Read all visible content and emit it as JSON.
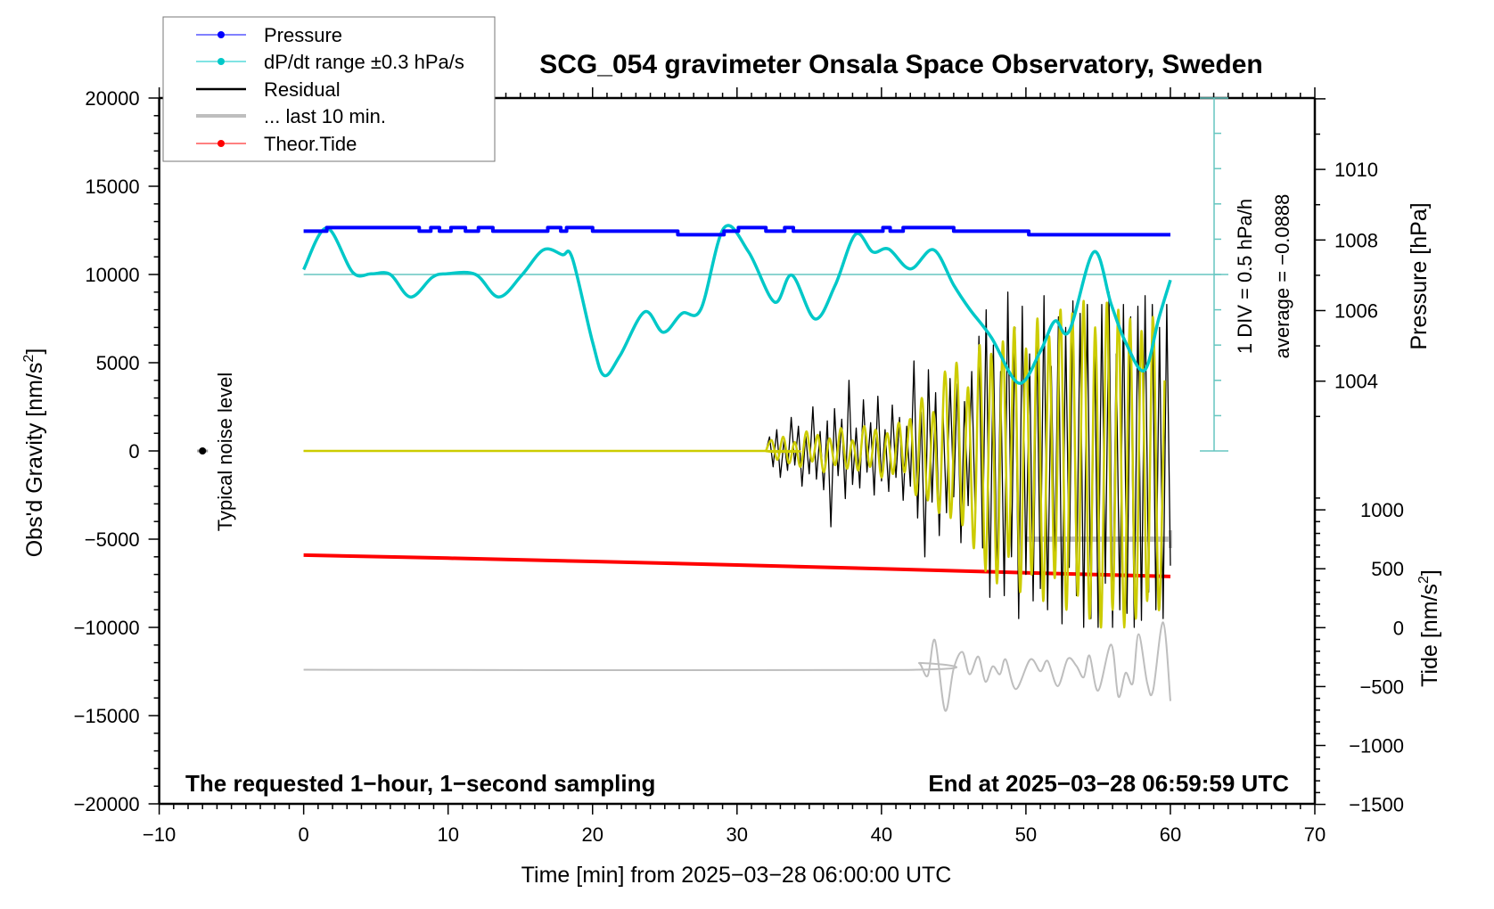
{
  "chart_data": {
    "type": "line",
    "title": "SCG_054 gravimeter Onsala Space Observatory, Sweden",
    "xlabel": "Time [min] from 2025−03−28 06:00:00 UTC",
    "ylabel_left_main": "Obs'd Gravity [nm/s",
    "ylabel_left_sup": "2",
    "ylabel_left_end": "]",
    "ylabel_right_pressure": "Pressure [hPa]",
    "ylabel_right_tide_main": "Tide [nm/s",
    "ylabel_right_tide_sup": "2",
    "ylabel_right_tide_end": "]",
    "xlim": [
      -10,
      70
    ],
    "ylim": [
      -20000,
      20000
    ],
    "pressure_lim_ticks": [
      1004,
      1006,
      1008,
      1010
    ],
    "tide_ticks": [
      -1500,
      -1000,
      -500,
      0,
      500,
      1000
    ],
    "x_ticks": [
      -10,
      0,
      10,
      20,
      30,
      40,
      50,
      60,
      70
    ],
    "x_tick_labels": [
      "−10",
      "0",
      "10",
      "20",
      "30",
      "40",
      "50",
      "60",
      "70"
    ],
    "y_ticks": [
      -20000,
      -15000,
      -10000,
      -5000,
      0,
      5000,
      10000,
      15000,
      20000
    ],
    "y_tick_labels": [
      "−20000",
      "−15000",
      "−10000",
      "−5000",
      "0",
      "5000",
      "10000",
      "15000",
      "20000"
    ],
    "pressure_tick_labels": [
      "1004",
      "1006",
      "1008",
      "1010"
    ],
    "tide_tick_labels": [
      "−1500",
      "−1000",
      "−500",
      "0",
      "500",
      "1000"
    ],
    "legend": {
      "placement": "top-left",
      "entries": [
        {
          "label": "Pressure",
          "color": "#0000ff",
          "style": "line-dot"
        },
        {
          "label": "dP/dt range ±0.3 hPa/s",
          "color": "#00c8c8",
          "style": "line-dot"
        },
        {
          "label": "Residual",
          "color": "#000000",
          "style": "line"
        },
        {
          "label": "... last 10 min.",
          "color": "#bebebe",
          "style": "line"
        },
        {
          "label": "Theor.Tide",
          "color": "#ff0000",
          "style": "line-dot"
        }
      ]
    },
    "annotations": {
      "left_note": "The requested 1−hour, 1−second sampling",
      "right_note": "End at 2025−03−28 06:59:59 UTC",
      "noise_label": "Typical noise level",
      "div_label": "1 DIV = 0.5 hPa/h",
      "average_label": "average = −0.0888"
    },
    "pressure_hPa_steps": [
      [
        0,
        1008.25
      ],
      [
        1.6,
        1008.35
      ],
      [
        8.0,
        1008.25
      ],
      [
        8.8,
        1008.35
      ],
      [
        9.4,
        1008.25
      ],
      [
        10.2,
        1008.35
      ],
      [
        11.2,
        1008.25
      ],
      [
        12.1,
        1008.35
      ],
      [
        13.1,
        1008.25
      ],
      [
        16.9,
        1008.35
      ],
      [
        17.8,
        1008.25
      ],
      [
        18.2,
        1008.35
      ],
      [
        20.0,
        1008.25
      ],
      [
        25.9,
        1008.15
      ],
      [
        29.1,
        1008.25
      ],
      [
        30.1,
        1008.35
      ],
      [
        32.0,
        1008.25
      ],
      [
        33.3,
        1008.35
      ],
      [
        33.9,
        1008.25
      ],
      [
        40.1,
        1008.35
      ],
      [
        40.6,
        1008.25
      ],
      [
        41.5,
        1008.35
      ],
      [
        45.0,
        1008.25
      ],
      [
        50.2,
        1008.15
      ],
      [
        60.0,
        1008.15
      ]
    ],
    "dpdt_hPa_per_h": {
      "t": [
        0,
        1.6,
        3.4,
        4.7,
        6.0,
        7.4,
        8.9,
        9.9,
        11.9,
        13.5,
        15.1,
        16.6,
        17.9,
        18.6,
        20.0,
        20.8,
        21.9,
        23.6,
        24.9,
        26.2,
        27.5,
        29.1,
        30.8,
        32.6,
        33.8,
        35.4,
        36.8,
        38.2,
        39.4,
        40.5,
        42.0,
        43.6,
        45.0,
        46.1,
        47.6,
        49.5,
        51.0,
        52.0,
        53.0,
        54.7,
        55.9,
        56.9,
        58.2,
        59.2,
        60.0
      ],
      "v": [
        0.07,
        0.66,
        0.03,
        0.01,
        0,
        -0.32,
        -0.04,
        0.01,
        0,
        -0.32,
        -0.01,
        0.35,
        0.28,
        0.23,
        -0.96,
        -1.43,
        -1.15,
        -0.53,
        -0.82,
        -0.55,
        -0.49,
        0.66,
        0.32,
        -0.39,
        -0.01,
        -0.63,
        -0.15,
        0.57,
        0.32,
        0.36,
        0.08,
        0.35,
        -0.15,
        -0.49,
        -0.89,
        -1.54,
        -1.09,
        -0.66,
        -0.8,
        0.32,
        -0.42,
        -0.96,
        -1.36,
        -0.62,
        -0.08
      ],
      "div_hPa_per_h": 0.5,
      "divisions": 10
    },
    "residual": {
      "quiet_until": 32,
      "t_start": 32,
      "dt": 0.25,
      "values": [
        0,
        800,
        -900,
        1200,
        -1500,
        600,
        -1100,
        1900,
        -800,
        1400,
        -2000,
        900,
        -1300,
        2500,
        -1600,
        1100,
        -2200,
        1700,
        -4300,
        2400,
        -1400,
        1800,
        -2700,
        4000,
        -1900,
        1300,
        -2100,
        2900,
        -1200,
        1600,
        -2500,
        3100,
        -1700,
        1200,
        -2300,
        2600,
        -1500,
        1900,
        -2800,
        1400,
        -2000,
        5100,
        -3800,
        2200,
        -6000,
        4600,
        -2900,
        3300,
        -4800,
        2500,
        -3500,
        4100,
        -2600,
        3800,
        -5200,
        2800,
        -3100,
        4500,
        -4000,
        6500,
        -5500,
        8000,
        -8300,
        6000,
        -7500,
        4500,
        -8200,
        9000,
        -6000,
        7000,
        -9500,
        8200,
        -7000,
        5500,
        -8500,
        6500,
        -7800,
        8800,
        -9000,
        4800,
        -6500,
        7600,
        -9800,
        7000,
        -6600,
        8500,
        -8200,
        7800,
        -10000,
        8300,
        -9500,
        6800,
        -10000,
        8300,
        -7500,
        9000,
        -10000,
        5500,
        -9000,
        8300,
        -9200,
        7600,
        -10000,
        8200,
        -9600,
        8800,
        -8000,
        8300,
        -9000,
        7000,
        -9500,
        8300,
        -6500
      ]
    },
    "filtered_residual": {
      "t_start": 32,
      "dt": 0.4,
      "values": [
        0,
        600,
        -500,
        800,
        -700,
        500,
        -900,
        1100,
        -600,
        900,
        -1200,
        700,
        -800,
        1300,
        -1000,
        600,
        -1100,
        1400,
        -900,
        1200,
        -1500,
        1000,
        -1300,
        1600,
        -1200,
        1800,
        -2500,
        3000,
        -2800,
        2200,
        -3500,
        4500,
        -3800,
        5000,
        -4200,
        3600,
        -5500,
        6000,
        -6800,
        5500,
        -7500,
        6200,
        -6000,
        7000,
        -8000,
        5800,
        -7000,
        7500,
        -8500,
        6500,
        -7200,
        8000,
        -9000,
        7800,
        -8200,
        8500,
        -9500,
        7000,
        -10000,
        8400,
        -9000,
        8000,
        -10000,
        7500,
        -9500,
        6800,
        -8500,
        7600,
        -9000,
        4000
      ]
    },
    "last10_bar": {
      "t": [
        50,
        60
      ],
      "gravity": -5000
    },
    "last10_trace": {
      "t": [
        0,
        41.9,
        42.6,
        43.2,
        43.7,
        44.4,
        45.0,
        45.6,
        46.1,
        46.7,
        47.2,
        47.7,
        48.2,
        48.6,
        49.3,
        50.3,
        51.0,
        51.5,
        52.2,
        52.9,
        53.5,
        54.0,
        54.4,
        55.0,
        55.9,
        56.4,
        56.9,
        57.4,
        57.8,
        58.4,
        58.8,
        59.5,
        60.0
      ],
      "gravity": [
        -12400,
        -12407,
        -12019,
        -12743,
        -10723,
        -14712,
        -12322,
        -11396,
        -12659,
        -11649,
        -13080,
        -12205,
        -12659,
        -11817,
        -13501,
        -11817,
        -12491,
        -11901,
        -13332,
        -11784,
        -12188,
        -12827,
        -11598,
        -13585,
        -10976,
        -13921,
        -12575,
        -13164,
        -10386,
        -13164,
        -13585,
        -9713,
        -14174
      ]
    },
    "theor_tide_nm_s2": {
      "t": [
        0,
        10,
        20,
        30,
        40,
        50,
        60
      ],
      "v": [
        616,
        590,
        562,
        532,
        500,
        466,
        434
      ]
    },
    "noise_level_point": {
      "t": -7,
      "gravity": 0
    },
    "colors": {
      "pressure": "#0000ff",
      "dpdt": "#00c8c8",
      "dpdt_axis": "#66c6c0",
      "residual": "#000000",
      "filtered": "#cccc00",
      "last10": "#bebebe",
      "tide": "#ff0000"
    }
  }
}
